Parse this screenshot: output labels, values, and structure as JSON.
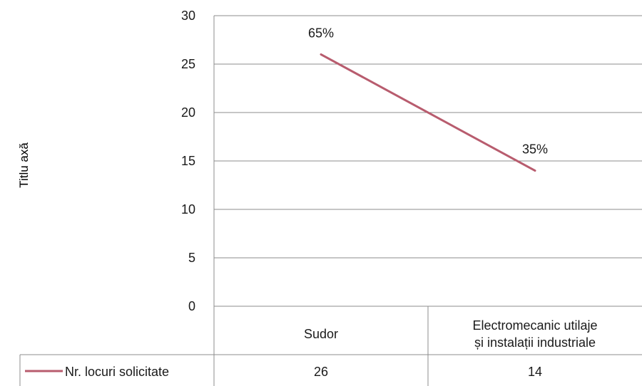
{
  "chart_data": {
    "type": "line",
    "categories": [
      "Sudor",
      "Electromecanic utilaje și instalații industriale"
    ],
    "category_lines": [
      [
        "Sudor"
      ],
      [
        "Electromecanic utilaje",
        "și instalații industriale"
      ]
    ],
    "series": [
      {
        "name": "Nr. locuri solicitate",
        "values": [
          26,
          14
        ],
        "color": "#B85C6E"
      }
    ],
    "data_labels": [
      "65%",
      "35%"
    ],
    "table_values": [
      "26",
      "14"
    ],
    "ylabel": "Titlu axă",
    "ylim": [
      0,
      30
    ],
    "yticks": [
      0,
      5,
      10,
      15,
      20,
      25,
      30
    ],
    "grid": true,
    "legend": "data-table"
  }
}
